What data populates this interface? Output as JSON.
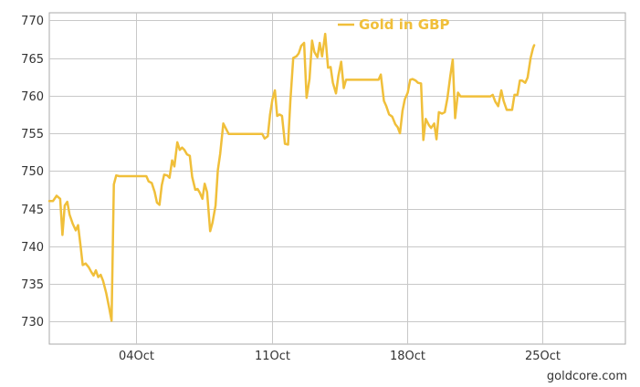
{
  "chart_data": {
    "type": "line",
    "title": "",
    "xlabel": "",
    "ylabel": "",
    "ylim": [
      727,
      771
    ],
    "yticks": [
      730,
      735,
      740,
      745,
      750,
      755,
      760,
      765,
      770
    ],
    "x_ticks": [
      {
        "label": "04Oct",
        "day": 4
      },
      {
        "label": "11Oct",
        "day": 11
      },
      {
        "label": "18Oct",
        "day": 18
      },
      {
        "label": "25Oct",
        "day": 25
      }
    ],
    "xlim_days": [
      -0.5,
      29.3
    ],
    "grid": true,
    "legend_position": "top-center",
    "series": [
      {
        "name": "Gold in GBP",
        "color": "#F0BF3A",
        "points": [
          [
            -0.5,
            746.0
          ],
          [
            -0.31,
            746.0
          ],
          [
            -0.12,
            746.7
          ],
          [
            0.06,
            746.3
          ],
          [
            0.18,
            741.5
          ],
          [
            0.3,
            745.4
          ],
          [
            0.43,
            745.9
          ],
          [
            0.55,
            744.2
          ],
          [
            0.71,
            743.0
          ],
          [
            0.87,
            742.1
          ],
          [
            0.99,
            742.8
          ],
          [
            1.11,
            740.2
          ],
          [
            1.23,
            737.5
          ],
          [
            1.38,
            737.7
          ],
          [
            1.54,
            737.2
          ],
          [
            1.67,
            736.6
          ],
          [
            1.79,
            736.1
          ],
          [
            1.91,
            736.8
          ],
          [
            2.03,
            735.9
          ],
          [
            2.16,
            736.2
          ],
          [
            2.28,
            735.4
          ],
          [
            2.44,
            733.8
          ],
          [
            2.6,
            731.8
          ],
          [
            2.72,
            730.1
          ],
          [
            2.84,
            748.2
          ],
          [
            2.96,
            749.4
          ],
          [
            3.12,
            749.3
          ],
          [
            3.43,
            749.3
          ],
          [
            3.74,
            749.3
          ],
          [
            4.05,
            749.3
          ],
          [
            4.36,
            749.3
          ],
          [
            4.52,
            749.3
          ],
          [
            4.64,
            748.6
          ],
          [
            4.8,
            748.4
          ],
          [
            4.95,
            747.2
          ],
          [
            5.07,
            745.8
          ],
          [
            5.2,
            745.5
          ],
          [
            5.32,
            748.1
          ],
          [
            5.44,
            749.5
          ],
          [
            5.6,
            749.4
          ],
          [
            5.72,
            749.1
          ],
          [
            5.85,
            751.4
          ],
          [
            5.97,
            750.6
          ],
          [
            6.12,
            753.8
          ],
          [
            6.25,
            752.8
          ],
          [
            6.37,
            753.1
          ],
          [
            6.49,
            752.8
          ],
          [
            6.62,
            752.2
          ],
          [
            6.77,
            752.0
          ],
          [
            6.89,
            749.2
          ],
          [
            7.05,
            747.5
          ],
          [
            7.17,
            747.6
          ],
          [
            7.29,
            747.1
          ],
          [
            7.42,
            746.3
          ],
          [
            7.54,
            748.3
          ],
          [
            7.66,
            747.2
          ],
          [
            7.82,
            742.0
          ],
          [
            7.94,
            743.1
          ],
          [
            8.1,
            745.4
          ],
          [
            8.22,
            750.1
          ],
          [
            8.34,
            752.3
          ],
          [
            8.5,
            756.3
          ],
          [
            8.62,
            755.7
          ],
          [
            8.78,
            754.9
          ],
          [
            9.12,
            754.9
          ],
          [
            9.43,
            754.9
          ],
          [
            9.74,
            754.9
          ],
          [
            10.05,
            754.9
          ],
          [
            10.36,
            754.9
          ],
          [
            10.52,
            754.9
          ],
          [
            10.64,
            754.3
          ],
          [
            10.8,
            754.6
          ],
          [
            10.92,
            757.5
          ],
          [
            11.04,
            759.5
          ],
          [
            11.17,
            760.7
          ],
          [
            11.29,
            757.3
          ],
          [
            11.41,
            757.5
          ],
          [
            11.54,
            757.3
          ],
          [
            11.69,
            753.6
          ],
          [
            11.85,
            753.5
          ],
          [
            11.97,
            759.2
          ],
          [
            12.12,
            765.0
          ],
          [
            12.28,
            765.2
          ],
          [
            12.4,
            765.6
          ],
          [
            12.53,
            766.6
          ],
          [
            12.68,
            767.0
          ],
          [
            12.81,
            759.7
          ],
          [
            12.96,
            762.2
          ],
          [
            13.09,
            767.3
          ],
          [
            13.21,
            765.8
          ],
          [
            13.37,
            765.1
          ],
          [
            13.49,
            767.0
          ],
          [
            13.61,
            765.2
          ],
          [
            13.77,
            768.2
          ],
          [
            13.92,
            763.7
          ],
          [
            14.05,
            763.8
          ],
          [
            14.17,
            761.7
          ],
          [
            14.33,
            760.3
          ],
          [
            14.45,
            762.6
          ],
          [
            14.6,
            764.5
          ],
          [
            14.73,
            761.0
          ],
          [
            14.85,
            762.1
          ],
          [
            15.01,
            762.1
          ],
          [
            15.32,
            762.1
          ],
          [
            15.63,
            762.1
          ],
          [
            15.94,
            762.1
          ],
          [
            16.25,
            762.1
          ],
          [
            16.53,
            762.1
          ],
          [
            16.65,
            762.8
          ],
          [
            16.81,
            759.3
          ],
          [
            16.93,
            758.6
          ],
          [
            17.08,
            757.5
          ],
          [
            17.24,
            757.2
          ],
          [
            17.4,
            756.2
          ],
          [
            17.52,
            755.8
          ],
          [
            17.64,
            755.0
          ],
          [
            17.77,
            758.0
          ],
          [
            17.89,
            759.5
          ],
          [
            18.04,
            760.4
          ],
          [
            18.17,
            762.1
          ],
          [
            18.29,
            762.2
          ],
          [
            18.45,
            762.0
          ],
          [
            18.57,
            761.7
          ],
          [
            18.73,
            761.6
          ],
          [
            18.85,
            754.1
          ],
          [
            18.97,
            756.9
          ],
          [
            19.13,
            756.1
          ],
          [
            19.25,
            755.7
          ],
          [
            19.41,
            756.3
          ],
          [
            19.53,
            754.2
          ],
          [
            19.65,
            757.8
          ],
          [
            19.81,
            757.6
          ],
          [
            19.96,
            757.8
          ],
          [
            20.09,
            759.6
          ],
          [
            20.24,
            762.6
          ],
          [
            20.37,
            764.8
          ],
          [
            20.49,
            757.0
          ],
          [
            20.64,
            760.4
          ],
          [
            20.77,
            759.9
          ],
          [
            20.92,
            759.9
          ],
          [
            21.23,
            759.9
          ],
          [
            21.54,
            759.9
          ],
          [
            21.85,
            759.9
          ],
          [
            22.16,
            759.9
          ],
          [
            22.32,
            759.9
          ],
          [
            22.44,
            760.1
          ],
          [
            22.57,
            759.2
          ],
          [
            22.72,
            758.6
          ],
          [
            22.88,
            760.7
          ],
          [
            23.0,
            759.3
          ],
          [
            23.16,
            758.1
          ],
          [
            23.28,
            758.1
          ],
          [
            23.44,
            758.1
          ],
          [
            23.56,
            760.1
          ],
          [
            23.72,
            760.1
          ],
          [
            23.84,
            762.0
          ],
          [
            23.96,
            762.0
          ],
          [
            24.12,
            761.7
          ],
          [
            24.24,
            762.4
          ],
          [
            24.4,
            765.0
          ],
          [
            24.52,
            766.3
          ],
          [
            24.58,
            766.7
          ]
        ]
      }
    ]
  },
  "credit": "goldcore.com"
}
